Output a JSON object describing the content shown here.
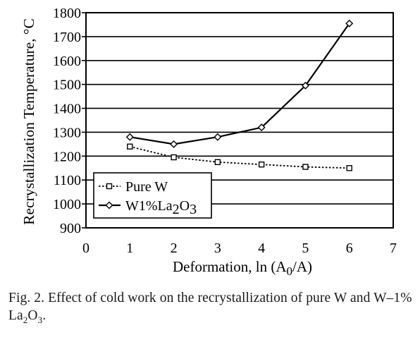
{
  "chart_data": {
    "type": "line",
    "title": "",
    "xlabel": {
      "text": "Deformation, ln (A",
      "sub": "0",
      "tail": "/A)"
    },
    "ylabel": "Recrystallization Temperature, °C",
    "xlim": [
      0,
      7
    ],
    "ylim": [
      900,
      1800
    ],
    "xticks": [
      0,
      1,
      2,
      3,
      4,
      5,
      6,
      7
    ],
    "yticks": [
      900,
      1000,
      1100,
      1200,
      1300,
      1400,
      1500,
      1600,
      1700,
      1800
    ],
    "grid": "horizontal",
    "legend_position": "bottom-left",
    "series": [
      {
        "name": "Pure W",
        "legend": {
          "text": "Pure W"
        },
        "marker": "square",
        "line_style": "dotted",
        "color": "#000000",
        "x": [
          1,
          2,
          3,
          4,
          5,
          6
        ],
        "y": [
          1240,
          1195,
          1175,
          1165,
          1155,
          1150
        ]
      },
      {
        "name": "W1%La2O3",
        "legend": {
          "text": "W1%La",
          "sub1": "2",
          "mid": "O",
          "sub2": "3"
        },
        "marker": "diamond",
        "line_style": "solid",
        "color": "#000000",
        "x": [
          1,
          2,
          3,
          4,
          5,
          6
        ],
        "y": [
          1280,
          1250,
          1280,
          1320,
          1495,
          1755
        ]
      }
    ]
  },
  "caption": {
    "text": "Fig. 2. Effect of cold work on the recrystallization of pure W and W–1% La",
    "sub1": "2",
    "mid": "O",
    "sub2": "3",
    "end": "."
  }
}
